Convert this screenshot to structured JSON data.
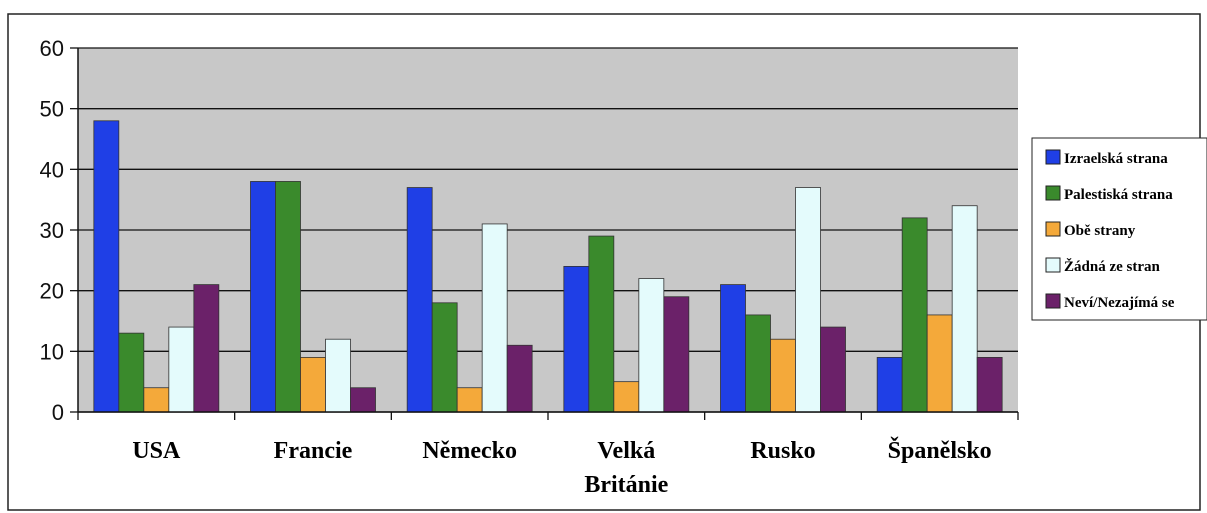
{
  "chart_data": {
    "type": "bar",
    "title": "",
    "xlabel": "",
    "ylabel": "",
    "ylim": [
      0,
      60
    ],
    "yticks": [
      0,
      10,
      20,
      30,
      40,
      50,
      60
    ],
    "grid": true,
    "legend_position": "right",
    "categories": [
      [
        "USA"
      ],
      [
        "Francie"
      ],
      [
        "Německo"
      ],
      [
        "Velká",
        "Británie"
      ],
      [
        "Rusko"
      ],
      [
        "Španělsko"
      ]
    ],
    "series": [
      {
        "name": "Izraelská strana",
        "color": "#1f3fe6",
        "values": [
          48,
          38,
          37,
          24,
          21,
          9
        ]
      },
      {
        "name": "Palestiská strana",
        "color": "#3a8a2c",
        "values": [
          13,
          38,
          18,
          29,
          16,
          32
        ]
      },
      {
        "name": "Obě strany",
        "color": "#f4a93a",
        "values": [
          4,
          9,
          4,
          5,
          12,
          16
        ]
      },
      {
        "name": "Žádná ze stran",
        "color": "#e4fbfc",
        "values": [
          14,
          12,
          31,
          22,
          37,
          34
        ]
      },
      {
        "name": "Neví/Nezajímá se",
        "color": "#6b2169",
        "values": [
          21,
          4,
          11,
          19,
          14,
          9
        ]
      }
    ],
    "colors": {
      "plot_background": "#c8c8c8",
      "gridline": "#111111"
    }
  }
}
